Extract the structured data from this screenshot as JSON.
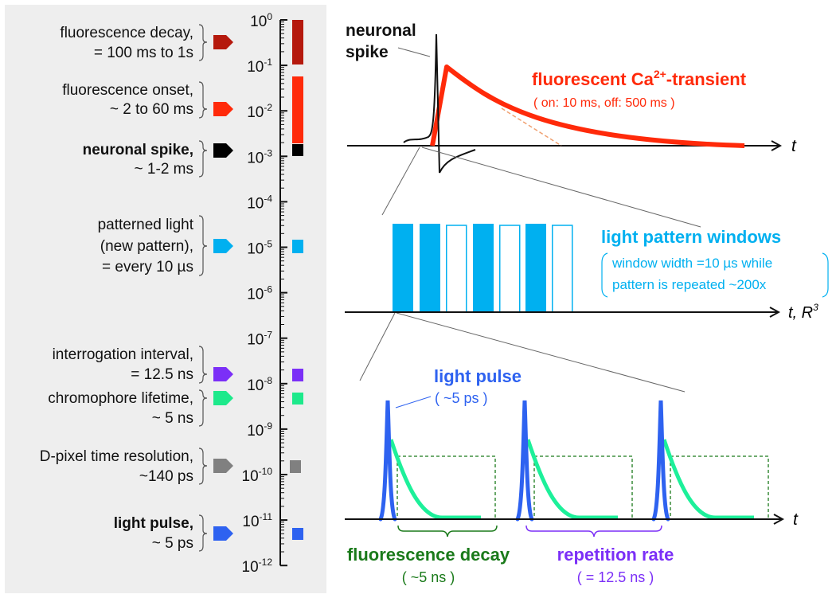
{
  "left_panel": {
    "entries": [
      {
        "lines": [
          "fluorescence decay,",
          "= 100 ms to 1s"
        ],
        "color": "#b5190d",
        "text_color": "#111111"
      },
      {
        "lines": [
          "fluorescence onset,",
          "~ 2 to 60 ms"
        ],
        "color": "#ff2a0a",
        "text_color": "#111111"
      },
      {
        "lines": [
          "neuronal spike,",
          "~ 1-2 ms"
        ],
        "color": "#000000",
        "text_color": "#111111"
      },
      {
        "lines": [
          "patterned light",
          "(new pattern),",
          "= every 10 µs"
        ],
        "color": "#00b0f0",
        "text_color": "#111111"
      },
      {
        "lines": [
          "interrogation interval,",
          "= 12.5 ns"
        ],
        "color": "#7b2ff7",
        "text_color": "#111111"
      },
      {
        "lines": [
          "chromophore lifetime,",
          "~ 5 ns"
        ],
        "color": "#1de98b",
        "text_color": "#111111"
      },
      {
        "lines": [
          "D-pixel time resolution,",
          "~140 ps"
        ],
        "color": "#808080",
        "text_color": "#111111"
      },
      {
        "lines": [
          "light pulse,",
          "~ 5 ps"
        ],
        "color": "#2e62f0",
        "text_color": "#2e62f0"
      }
    ],
    "axis": {
      "base": "10",
      "exponents": [
        "0",
        "-1",
        "-2",
        "-3",
        "-4",
        "-5",
        "-6",
        "-7",
        "-8",
        "-9",
        "-10",
        "-11",
        "-12"
      ]
    }
  },
  "top_panel": {
    "spike_label": [
      "neuronal",
      "spike"
    ],
    "transient_title_pre": "fluorescent Ca",
    "transient_title_sup": "2+",
    "transient_title_post": "-transient",
    "transient_sub": "( on: 10 ms, off: 500 ms )",
    "axis_label": "t",
    "colors": {
      "transient": "#ff2a0a",
      "spike": "#111111"
    }
  },
  "middle_panel": {
    "title": "light pattern windows",
    "note_lines": [
      "window width =10 µs while",
      "pattern is repeated ~200x"
    ],
    "axis_label": "t, R",
    "axis_label_sup": "3",
    "pattern": [
      1,
      1,
      0,
      1,
      0,
      1,
      0
    ],
    "color": "#00b0f0"
  },
  "bottom_panel": {
    "pulse_label": "light pulse",
    "pulse_sub": "( ~5 ps )",
    "decay_label": "fluorescence decay",
    "decay_sub": "( ~5 ns )",
    "rep_label": "repetition rate",
    "rep_sub": "( = 12.5 ns )",
    "axis_label": "t",
    "colors": {
      "pulse": "#2e62f0",
      "decay": "#1df09a",
      "window": "#1a7a1a",
      "rep": "#7b2ff7"
    }
  }
}
